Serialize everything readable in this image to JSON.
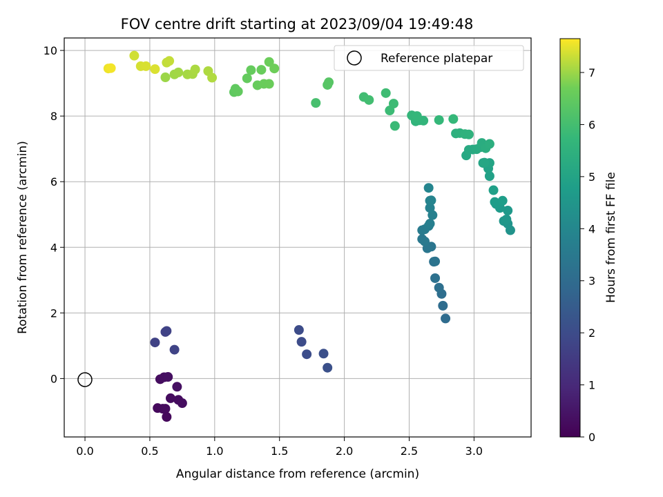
{
  "chart_data": {
    "type": "scatter",
    "title": "FOV centre drift starting at 2023/09/04 19:49:48",
    "xlabel": "Angular distance from reference (arcmin)",
    "ylabel": "Rotation from reference (arcmin)",
    "xlim": [
      -0.16,
      3.44
    ],
    "ylim": [
      -1.78,
      10.38
    ],
    "xticks": [
      "0.0",
      "0.5",
      "1.0",
      "1.5",
      "2.0",
      "2.5",
      "3.0"
    ],
    "yticks": [
      "0",
      "2",
      "4",
      "6",
      "8",
      "10"
    ],
    "grid": true,
    "legend": {
      "position": "top-right",
      "label": "Reference platepar"
    },
    "reference_point": {
      "x": 0.0,
      "y": 0.0,
      "marker": "open-circle"
    },
    "colorbar": {
      "label": "Hours from first FF file",
      "range": [
        0,
        7.65
      ],
      "ticks": [
        "0",
        "1",
        "2",
        "3",
        "4",
        "5",
        "6",
        "7"
      ],
      "colormap": "viridis"
    },
    "points": [
      {
        "x": 0.54,
        "y": 1.1,
        "c": 1.7
      },
      {
        "x": 0.62,
        "y": 1.42,
        "c": 1.72
      },
      {
        "x": 0.63,
        "y": 1.45,
        "c": 1.74
      },
      {
        "x": 0.69,
        "y": 0.88,
        "c": 1.76
      },
      {
        "x": 0.58,
        "y": -0.02,
        "c": 0.3
      },
      {
        "x": 0.61,
        "y": 0.04,
        "c": 0.32
      },
      {
        "x": 0.64,
        "y": 0.05,
        "c": 0.34
      },
      {
        "x": 0.71,
        "y": -0.25,
        "c": 0.36
      },
      {
        "x": 0.56,
        "y": -0.9,
        "c": 0.2
      },
      {
        "x": 0.6,
        "y": -0.92,
        "c": 0.22
      },
      {
        "x": 0.62,
        "y": -0.92,
        "c": 0.24
      },
      {
        "x": 0.63,
        "y": -1.17,
        "c": 0.18
      },
      {
        "x": 0.66,
        "y": -0.6,
        "c": 0.26
      },
      {
        "x": 0.72,
        "y": -0.65,
        "c": 0.28
      },
      {
        "x": 0.75,
        "y": -0.75,
        "c": 0.3
      },
      {
        "x": 1.65,
        "y": 1.48,
        "c": 2.0
      },
      {
        "x": 1.67,
        "y": 1.12,
        "c": 2.02
      },
      {
        "x": 1.71,
        "y": 0.74,
        "c": 2.05
      },
      {
        "x": 1.84,
        "y": 0.76,
        "c": 2.1
      },
      {
        "x": 1.87,
        "y": 0.33,
        "c": 2.12
      },
      {
        "x": 2.78,
        "y": 1.83,
        "c": 3.0
      },
      {
        "x": 2.76,
        "y": 2.22,
        "c": 3.05
      },
      {
        "x": 2.75,
        "y": 2.58,
        "c": 3.1
      },
      {
        "x": 2.73,
        "y": 2.77,
        "c": 3.15
      },
      {
        "x": 2.7,
        "y": 3.06,
        "c": 3.2
      },
      {
        "x": 2.69,
        "y": 3.56,
        "c": 3.25
      },
      {
        "x": 2.7,
        "y": 3.57,
        "c": 3.3
      },
      {
        "x": 2.67,
        "y": 4.02,
        "c": 3.35
      },
      {
        "x": 2.64,
        "y": 3.97,
        "c": 3.4
      },
      {
        "x": 2.6,
        "y": 4.25,
        "c": 3.45
      },
      {
        "x": 2.62,
        "y": 4.18,
        "c": 3.5
      },
      {
        "x": 2.6,
        "y": 4.52,
        "c": 3.55
      },
      {
        "x": 2.62,
        "y": 4.55,
        "c": 3.6
      },
      {
        "x": 2.65,
        "y": 4.65,
        "c": 3.65
      },
      {
        "x": 2.66,
        "y": 4.72,
        "c": 3.7
      },
      {
        "x": 2.68,
        "y": 4.98,
        "c": 3.75
      },
      {
        "x": 2.66,
        "y": 5.2,
        "c": 3.8
      },
      {
        "x": 2.66,
        "y": 5.42,
        "c": 3.85
      },
      {
        "x": 2.67,
        "y": 5.43,
        "c": 3.88
      },
      {
        "x": 2.65,
        "y": 5.81,
        "c": 3.92
      },
      {
        "x": 3.28,
        "y": 4.52,
        "c": 4.4
      },
      {
        "x": 3.26,
        "y": 4.72,
        "c": 4.45
      },
      {
        "x": 3.23,
        "y": 4.8,
        "c": 4.5
      },
      {
        "x": 3.25,
        "y": 4.85,
        "c": 4.55
      },
      {
        "x": 3.26,
        "y": 5.12,
        "c": 4.6
      },
      {
        "x": 3.2,
        "y": 5.2,
        "c": 4.65
      },
      {
        "x": 3.17,
        "y": 5.32,
        "c": 4.7
      },
      {
        "x": 3.16,
        "y": 5.38,
        "c": 4.75
      },
      {
        "x": 3.22,
        "y": 5.42,
        "c": 4.8
      },
      {
        "x": 3.15,
        "y": 5.74,
        "c": 4.85
      },
      {
        "x": 3.12,
        "y": 6.17,
        "c": 4.9
      },
      {
        "x": 3.11,
        "y": 6.4,
        "c": 4.95
      },
      {
        "x": 3.12,
        "y": 6.57,
        "c": 5.0
      },
      {
        "x": 3.07,
        "y": 6.57,
        "c": 5.05
      },
      {
        "x": 3.08,
        "y": 6.58,
        "c": 5.08
      },
      {
        "x": 2.94,
        "y": 6.8,
        "c": 5.15
      },
      {
        "x": 2.96,
        "y": 6.97,
        "c": 5.2
      },
      {
        "x": 2.99,
        "y": 6.98,
        "c": 5.22
      },
      {
        "x": 3.02,
        "y": 6.99,
        "c": 5.25
      },
      {
        "x": 3.05,
        "y": 7.05,
        "c": 5.28
      },
      {
        "x": 3.06,
        "y": 7.18,
        "c": 5.32
      },
      {
        "x": 3.09,
        "y": 7.02,
        "c": 5.35
      },
      {
        "x": 3.12,
        "y": 7.15,
        "c": 5.38
      },
      {
        "x": 2.86,
        "y": 7.47,
        "c": 5.45
      },
      {
        "x": 2.89,
        "y": 7.48,
        "c": 5.48
      },
      {
        "x": 2.93,
        "y": 7.45,
        "c": 5.5
      },
      {
        "x": 2.96,
        "y": 7.44,
        "c": 5.52
      },
      {
        "x": 2.55,
        "y": 7.84,
        "c": 5.6
      },
      {
        "x": 2.58,
        "y": 7.87,
        "c": 5.62
      },
      {
        "x": 2.61,
        "y": 7.86,
        "c": 5.64
      },
      {
        "x": 2.54,
        "y": 7.96,
        "c": 5.66
      },
      {
        "x": 2.52,
        "y": 8.02,
        "c": 5.68
      },
      {
        "x": 2.56,
        "y": 8.0,
        "c": 5.7
      },
      {
        "x": 2.73,
        "y": 7.88,
        "c": 5.72
      },
      {
        "x": 2.84,
        "y": 7.91,
        "c": 5.74
      },
      {
        "x": 2.39,
        "y": 7.7,
        "c": 5.82
      },
      {
        "x": 2.35,
        "y": 8.17,
        "c": 5.85
      },
      {
        "x": 2.38,
        "y": 8.38,
        "c": 5.88
      },
      {
        "x": 2.32,
        "y": 8.7,
        "c": 5.9
      },
      {
        "x": 2.15,
        "y": 8.58,
        "c": 5.95
      },
      {
        "x": 2.19,
        "y": 8.49,
        "c": 5.97
      },
      {
        "x": 1.78,
        "y": 8.4,
        "c": 6.05
      },
      {
        "x": 1.87,
        "y": 8.95,
        "c": 6.3
      },
      {
        "x": 1.88,
        "y": 9.03,
        "c": 6.32
      },
      {
        "x": 1.15,
        "y": 8.73,
        "c": 6.45
      },
      {
        "x": 1.16,
        "y": 8.83,
        "c": 6.47
      },
      {
        "x": 1.18,
        "y": 8.75,
        "c": 6.49
      },
      {
        "x": 1.25,
        "y": 9.15,
        "c": 6.52
      },
      {
        "x": 1.28,
        "y": 9.4,
        "c": 6.55
      },
      {
        "x": 1.33,
        "y": 8.94,
        "c": 6.57
      },
      {
        "x": 1.36,
        "y": 9.41,
        "c": 6.59
      },
      {
        "x": 1.38,
        "y": 8.98,
        "c": 6.61
      },
      {
        "x": 1.42,
        "y": 8.98,
        "c": 6.63
      },
      {
        "x": 1.42,
        "y": 9.65,
        "c": 6.65
      },
      {
        "x": 1.46,
        "y": 9.45,
        "c": 6.67
      },
      {
        "x": 0.62,
        "y": 9.18,
        "c": 7.0
      },
      {
        "x": 0.69,
        "y": 9.27,
        "c": 7.02
      },
      {
        "x": 0.72,
        "y": 9.33,
        "c": 7.04
      },
      {
        "x": 0.79,
        "y": 9.27,
        "c": 7.06
      },
      {
        "x": 0.83,
        "y": 9.28,
        "c": 7.08
      },
      {
        "x": 0.85,
        "y": 9.42,
        "c": 7.1
      },
      {
        "x": 0.95,
        "y": 9.37,
        "c": 7.12
      },
      {
        "x": 0.98,
        "y": 9.17,
        "c": 7.14
      },
      {
        "x": 0.63,
        "y": 9.63,
        "c": 7.25
      },
      {
        "x": 0.65,
        "y": 9.68,
        "c": 7.27
      },
      {
        "x": 0.38,
        "y": 9.84,
        "c": 7.35
      },
      {
        "x": 0.43,
        "y": 9.52,
        "c": 7.38
      },
      {
        "x": 0.47,
        "y": 9.52,
        "c": 7.4
      },
      {
        "x": 0.54,
        "y": 9.43,
        "c": 7.42
      },
      {
        "x": 0.18,
        "y": 9.45,
        "c": 7.55
      },
      {
        "x": 0.2,
        "y": 9.46,
        "c": 7.58
      }
    ]
  }
}
